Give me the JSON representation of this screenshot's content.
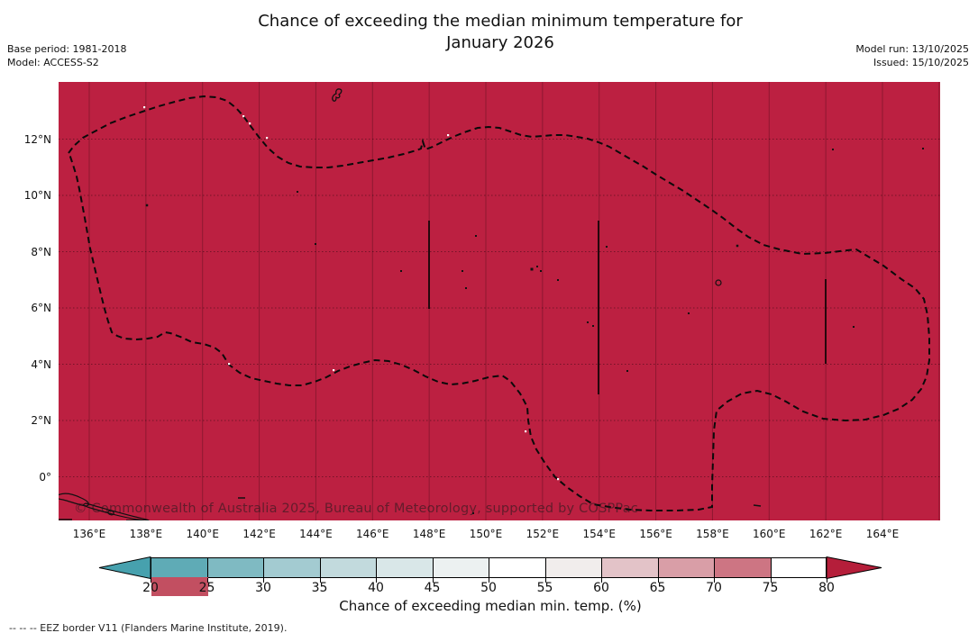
{
  "title": {
    "line1": "Chance of exceeding the median minimum temperature for",
    "line2": "January 2026"
  },
  "annotations": {
    "base_period": "Base period: 1981-2018",
    "model": "Model: ACCESS-S2",
    "model_run": "Model run: 13/10/2025",
    "issued": "Issued: 15/10/2025"
  },
  "map": {
    "fill_color": "#bc2041",
    "watermark": "© Commonwealth of Australia 2025, Bureau of Meteorology, supported by COSPPac",
    "lat_tick_labels": [
      "12°N",
      "10°N",
      "8°N",
      "6°N",
      "4°N",
      "2°N",
      "0°"
    ],
    "lon_tick_labels": [
      "136°E",
      "138°E",
      "140°E",
      "142°E",
      "144°E",
      "146°E",
      "148°E",
      "150°E",
      "152°E",
      "154°E",
      "156°E",
      "158°E",
      "160°E",
      "162°E",
      "164°E"
    ]
  },
  "colorbar": {
    "label": "Chance of exceeding median min. temp. (%)",
    "tick_labels": [
      "20",
      "25",
      "30",
      "35",
      "40",
      "45",
      "50",
      "55",
      "60",
      "65",
      "70",
      "75",
      "80"
    ],
    "segment_colors": [
      "#5fabb6",
      "#7fbac2",
      "#a3cbd1",
      "#c2dadd",
      "#d9e7e8",
      "#ecf1f1",
      "#ffffff",
      "#f1edec",
      "#e3c3c8",
      "#d99ea7",
      "#cd7583",
      "#c24f61"
    ],
    "arrow_left_color": "#47a1ae",
    "arrow_right_color": "#b51e3a"
  },
  "footer": {
    "eez_note": "--  --  -- EEZ border V11 (Flanders Marine Institute, 2019)."
  },
  "chart_data": {
    "type": "heatmap",
    "title": "Chance of exceeding the median minimum temperature for January 2026",
    "value_label": "Chance of exceeding median min. temp. (%)",
    "x_tick_labels": [
      "136°E",
      "138°E",
      "140°E",
      "142°E",
      "144°E",
      "146°E",
      "148°E",
      "150°E",
      "152°E",
      "154°E",
      "156°E",
      "158°E",
      "160°E",
      "162°E",
      "164°E"
    ],
    "y_tick_labels": [
      "12°N",
      "10°N",
      "8°N",
      "6°N",
      "4°N",
      "2°N",
      "0°"
    ],
    "scale_ticks": [
      20,
      25,
      30,
      35,
      40,
      45,
      50,
      55,
      60,
      65,
      70,
      75,
      80
    ],
    "observed_field": "uniform, above 80% everywhere in mapped region",
    "legend_position": "bottom"
  }
}
